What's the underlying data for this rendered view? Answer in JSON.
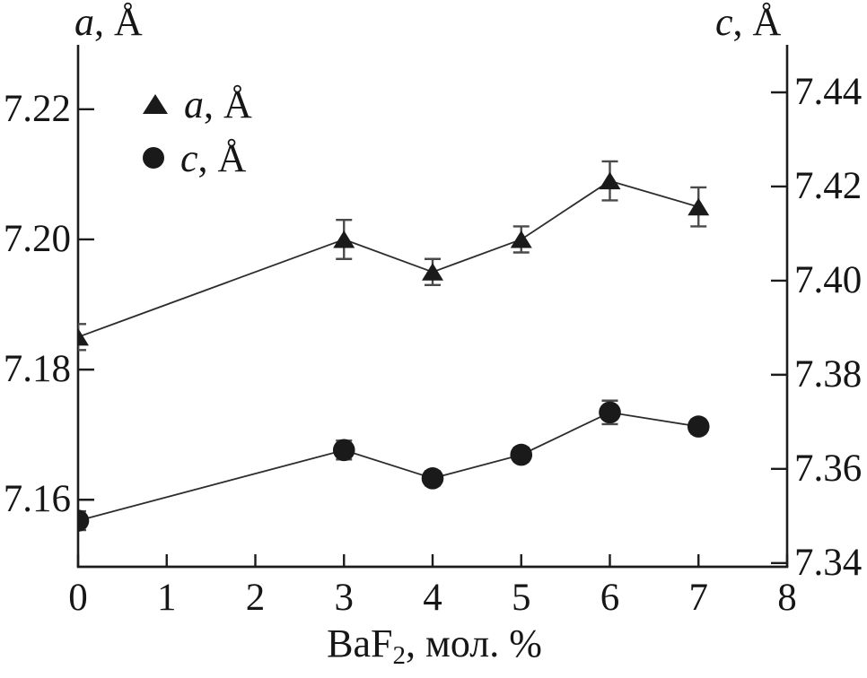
{
  "chart_data": {
    "type": "line",
    "title": "",
    "description": "Lattice parameters a and c versus BaF2 content with error bars",
    "grid": false,
    "legend_position": "top-left-inside",
    "x_axis": {
      "label_pre": "BaF",
      "label_sub": "2",
      "label_post": ", мол. %",
      "ticks": [
        "0",
        "1",
        "2",
        "3",
        "4",
        "5",
        "6",
        "7",
        "8"
      ],
      "range": [
        0,
        8
      ]
    },
    "left_axis": {
      "title_var": "a",
      "title_rest": ", Å",
      "ticks": [
        "7.16",
        "7.18",
        "7.20",
        "7.22"
      ],
      "range": [
        7.1497,
        7.2299
      ]
    },
    "right_axis": {
      "title_var": "c",
      "title_rest": ", Å",
      "ticks": [
        "7.34",
        "7.36",
        "7.38",
        "7.40",
        "7.42",
        "7.44"
      ],
      "range": [
        7.3392,
        7.4501
      ]
    },
    "legend": [
      {
        "marker": "triangle-icon",
        "var": "a",
        "rest": ", Å"
      },
      {
        "marker": "circle-icon",
        "var": "c",
        "rest": ", Å"
      }
    ],
    "series": [
      {
        "name": "a, Å",
        "axis": "left",
        "marker": "triangle",
        "points": [
          {
            "x": 0,
            "y": 7.185,
            "err": 0.002
          },
          {
            "x": 3,
            "y": 7.2,
            "err": 0.003
          },
          {
            "x": 4,
            "y": 7.195,
            "err": 0.002
          },
          {
            "x": 5,
            "y": 7.2,
            "err": 0.002
          },
          {
            "x": 6,
            "y": 7.209,
            "err": 0.003
          },
          {
            "x": 7,
            "y": 7.205,
            "err": 0.003
          }
        ]
      },
      {
        "name": "c, Å",
        "axis": "right",
        "marker": "circle",
        "points": [
          {
            "x": 0,
            "y": 7.349,
            "err": 0.002
          },
          {
            "x": 3,
            "y": 7.364,
            "err": 0.002
          },
          {
            "x": 4,
            "y": 7.358,
            "err": 0.0015
          },
          {
            "x": 5,
            "y": 7.363,
            "err": 0.0015
          },
          {
            "x": 6,
            "y": 7.372,
            "err": 0.0025
          },
          {
            "x": 7,
            "y": 7.369,
            "err": 0.0015
          }
        ]
      }
    ],
    "colors": {
      "ink": "#1c1c1c",
      "line": "#2d2d2d",
      "error": "#4a4a4a",
      "marker": "#1a1a1a",
      "background": "#ffffff"
    }
  }
}
